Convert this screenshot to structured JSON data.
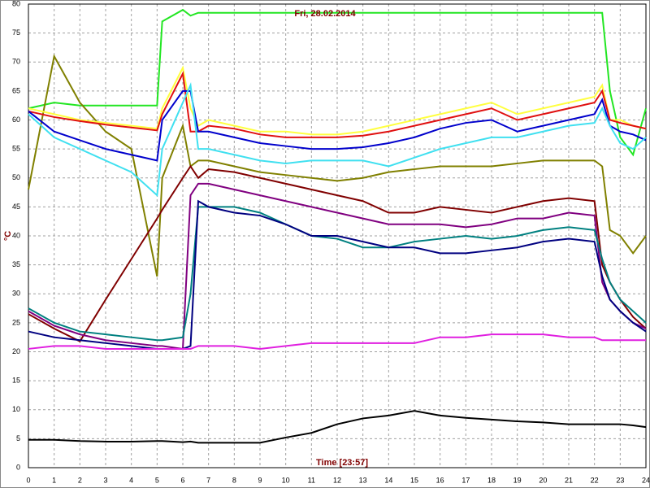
{
  "chart_data": {
    "type": "line",
    "title": "Fri, 28.02.2014",
    "x_label": "Time [23:57]",
    "y_label": "°C",
    "x": [
      0,
      1,
      2,
      3,
      4,
      5,
      5.2,
      6,
      6.3,
      6.6,
      7,
      8,
      9,
      10,
      11,
      12,
      13,
      14,
      15,
      16,
      17,
      18,
      19,
      20,
      21,
      22,
      22.3,
      22.6,
      23,
      23.5,
      24
    ],
    "xlim": [
      0,
      24
    ],
    "xticks": [
      0,
      1,
      2,
      3,
      4,
      5,
      6,
      7,
      8,
      9,
      10,
      11,
      12,
      13,
      14,
      15,
      16,
      17,
      18,
      19,
      20,
      21,
      22,
      23,
      24
    ],
    "ylim": [
      0,
      80
    ],
    "yticks": [
      0,
      5,
      10,
      15,
      20,
      25,
      30,
      35,
      40,
      45,
      50,
      55,
      60,
      65,
      70,
      75,
      80
    ],
    "grid": true,
    "series": [
      {
        "color": "#22e622",
        "values": [
          62,
          63,
          62.5,
          62.5,
          62.5,
          62.5,
          77,
          79,
          78,
          78.5,
          78.5,
          78.5,
          78.5,
          78.5,
          78.5,
          78.5,
          78.5,
          78.5,
          78.5,
          78.5,
          78.5,
          78.5,
          78.5,
          78.5,
          78.5,
          78.5,
          78.5,
          65,
          57,
          54,
          62
        ]
      },
      {
        "color": "#808000",
        "values": [
          48,
          71,
          63,
          58,
          55,
          33,
          50,
          59,
          52,
          53,
          53,
          52,
          51,
          50.5,
          50,
          49.5,
          50,
          51,
          51.5,
          52,
          52,
          52,
          52.5,
          53,
          53,
          53,
          52,
          41,
          40,
          37,
          40
        ]
      },
      {
        "color": "#ffff40",
        "values": [
          62,
          61,
          60,
          59.5,
          59,
          58.5,
          62,
          69,
          62,
          59,
          60,
          59,
          58,
          58,
          57.5,
          57.5,
          58,
          59,
          60,
          61,
          62,
          63,
          61,
          62,
          63,
          64,
          66,
          60,
          60,
          59,
          58.5
        ]
      },
      {
        "color": "#e01010",
        "values": [
          61.5,
          60.5,
          59.8,
          59.2,
          58.7,
          58.2,
          61,
          68,
          58,
          58,
          59,
          58.5,
          57.5,
          57,
          57,
          57,
          57.3,
          58,
          59,
          60,
          61,
          62,
          60,
          61,
          62,
          63,
          65,
          60,
          59.5,
          59,
          58.5
        ]
      },
      {
        "color": "#0000cc",
        "values": [
          61.5,
          58,
          56.5,
          55,
          54,
          53,
          60,
          65,
          65,
          58,
          58,
          57,
          56,
          55.5,
          55,
          55,
          55.3,
          56,
          57,
          58.5,
          59.5,
          60,
          58,
          59,
          60,
          61,
          63.5,
          59,
          58,
          57.5,
          56.5
        ]
      },
      {
        "color": "#40e0f0",
        "values": [
          61,
          57,
          55,
          53,
          51,
          47,
          55,
          63,
          66,
          55,
          55,
          54,
          53,
          52.5,
          53,
          53,
          53,
          52,
          53.5,
          55,
          56,
          57,
          57,
          58,
          59,
          59.5,
          62,
          59,
          56,
          55,
          57
        ]
      },
      {
        "color": "#800000",
        "values": [
          26.5,
          24,
          21.8,
          29,
          36,
          43,
          44.5,
          50,
          52,
          50,
          51.5,
          51,
          50,
          49,
          48,
          47,
          46,
          44,
          44,
          45,
          44.5,
          44,
          45,
          46,
          46.5,
          46,
          35,
          32,
          29,
          26,
          24
        ]
      },
      {
        "color": "#800080",
        "values": [
          27,
          24.5,
          23,
          22,
          21.5,
          21,
          21,
          20.5,
          47,
          49,
          49,
          48,
          47,
          46,
          45,
          44,
          43,
          42,
          42,
          42,
          41.5,
          42,
          43,
          43,
          44,
          43.5,
          32,
          29,
          27,
          25,
          24
        ]
      },
      {
        "color": "#008080",
        "values": [
          27.5,
          25,
          23.5,
          23,
          22.5,
          22,
          22,
          22.5,
          30,
          45,
          45,
          45,
          44,
          42,
          40,
          39.5,
          38,
          38,
          39,
          39.5,
          40,
          39.5,
          40,
          41,
          41.5,
          41,
          36,
          32,
          29,
          27,
          25
        ]
      },
      {
        "color": "#000080",
        "values": [
          23.5,
          22.5,
          22,
          21.5,
          21,
          20.5,
          20.5,
          20.5,
          21,
          46,
          45,
          44,
          43.5,
          42,
          40,
          40,
          39,
          38,
          38,
          37,
          37,
          37.5,
          38,
          39,
          39.5,
          39,
          33,
          29,
          27,
          25,
          23.5
        ]
      },
      {
        "color": "#e020e0",
        "values": [
          20.5,
          21,
          21,
          20.5,
          20.5,
          20.5,
          20.5,
          20.5,
          20.5,
          21,
          21,
          21,
          20.5,
          21,
          21.5,
          21.5,
          21.5,
          21.5,
          21.5,
          22.5,
          22.5,
          23,
          23,
          23,
          22.5,
          22.5,
          22,
          22,
          22,
          22,
          22
        ]
      },
      {
        "color": "#000000",
        "values": [
          4.8,
          4.8,
          4.6,
          4.5,
          4.5,
          4.6,
          4.6,
          4.4,
          4.5,
          4.3,
          4.3,
          4.3,
          4.3,
          5.2,
          6,
          7.5,
          8.5,
          9,
          9.8,
          9,
          8.6,
          8.3,
          8,
          7.8,
          7.5,
          7.5,
          7.5,
          7.5,
          7.5,
          7.3,
          7
        ]
      }
    ]
  }
}
